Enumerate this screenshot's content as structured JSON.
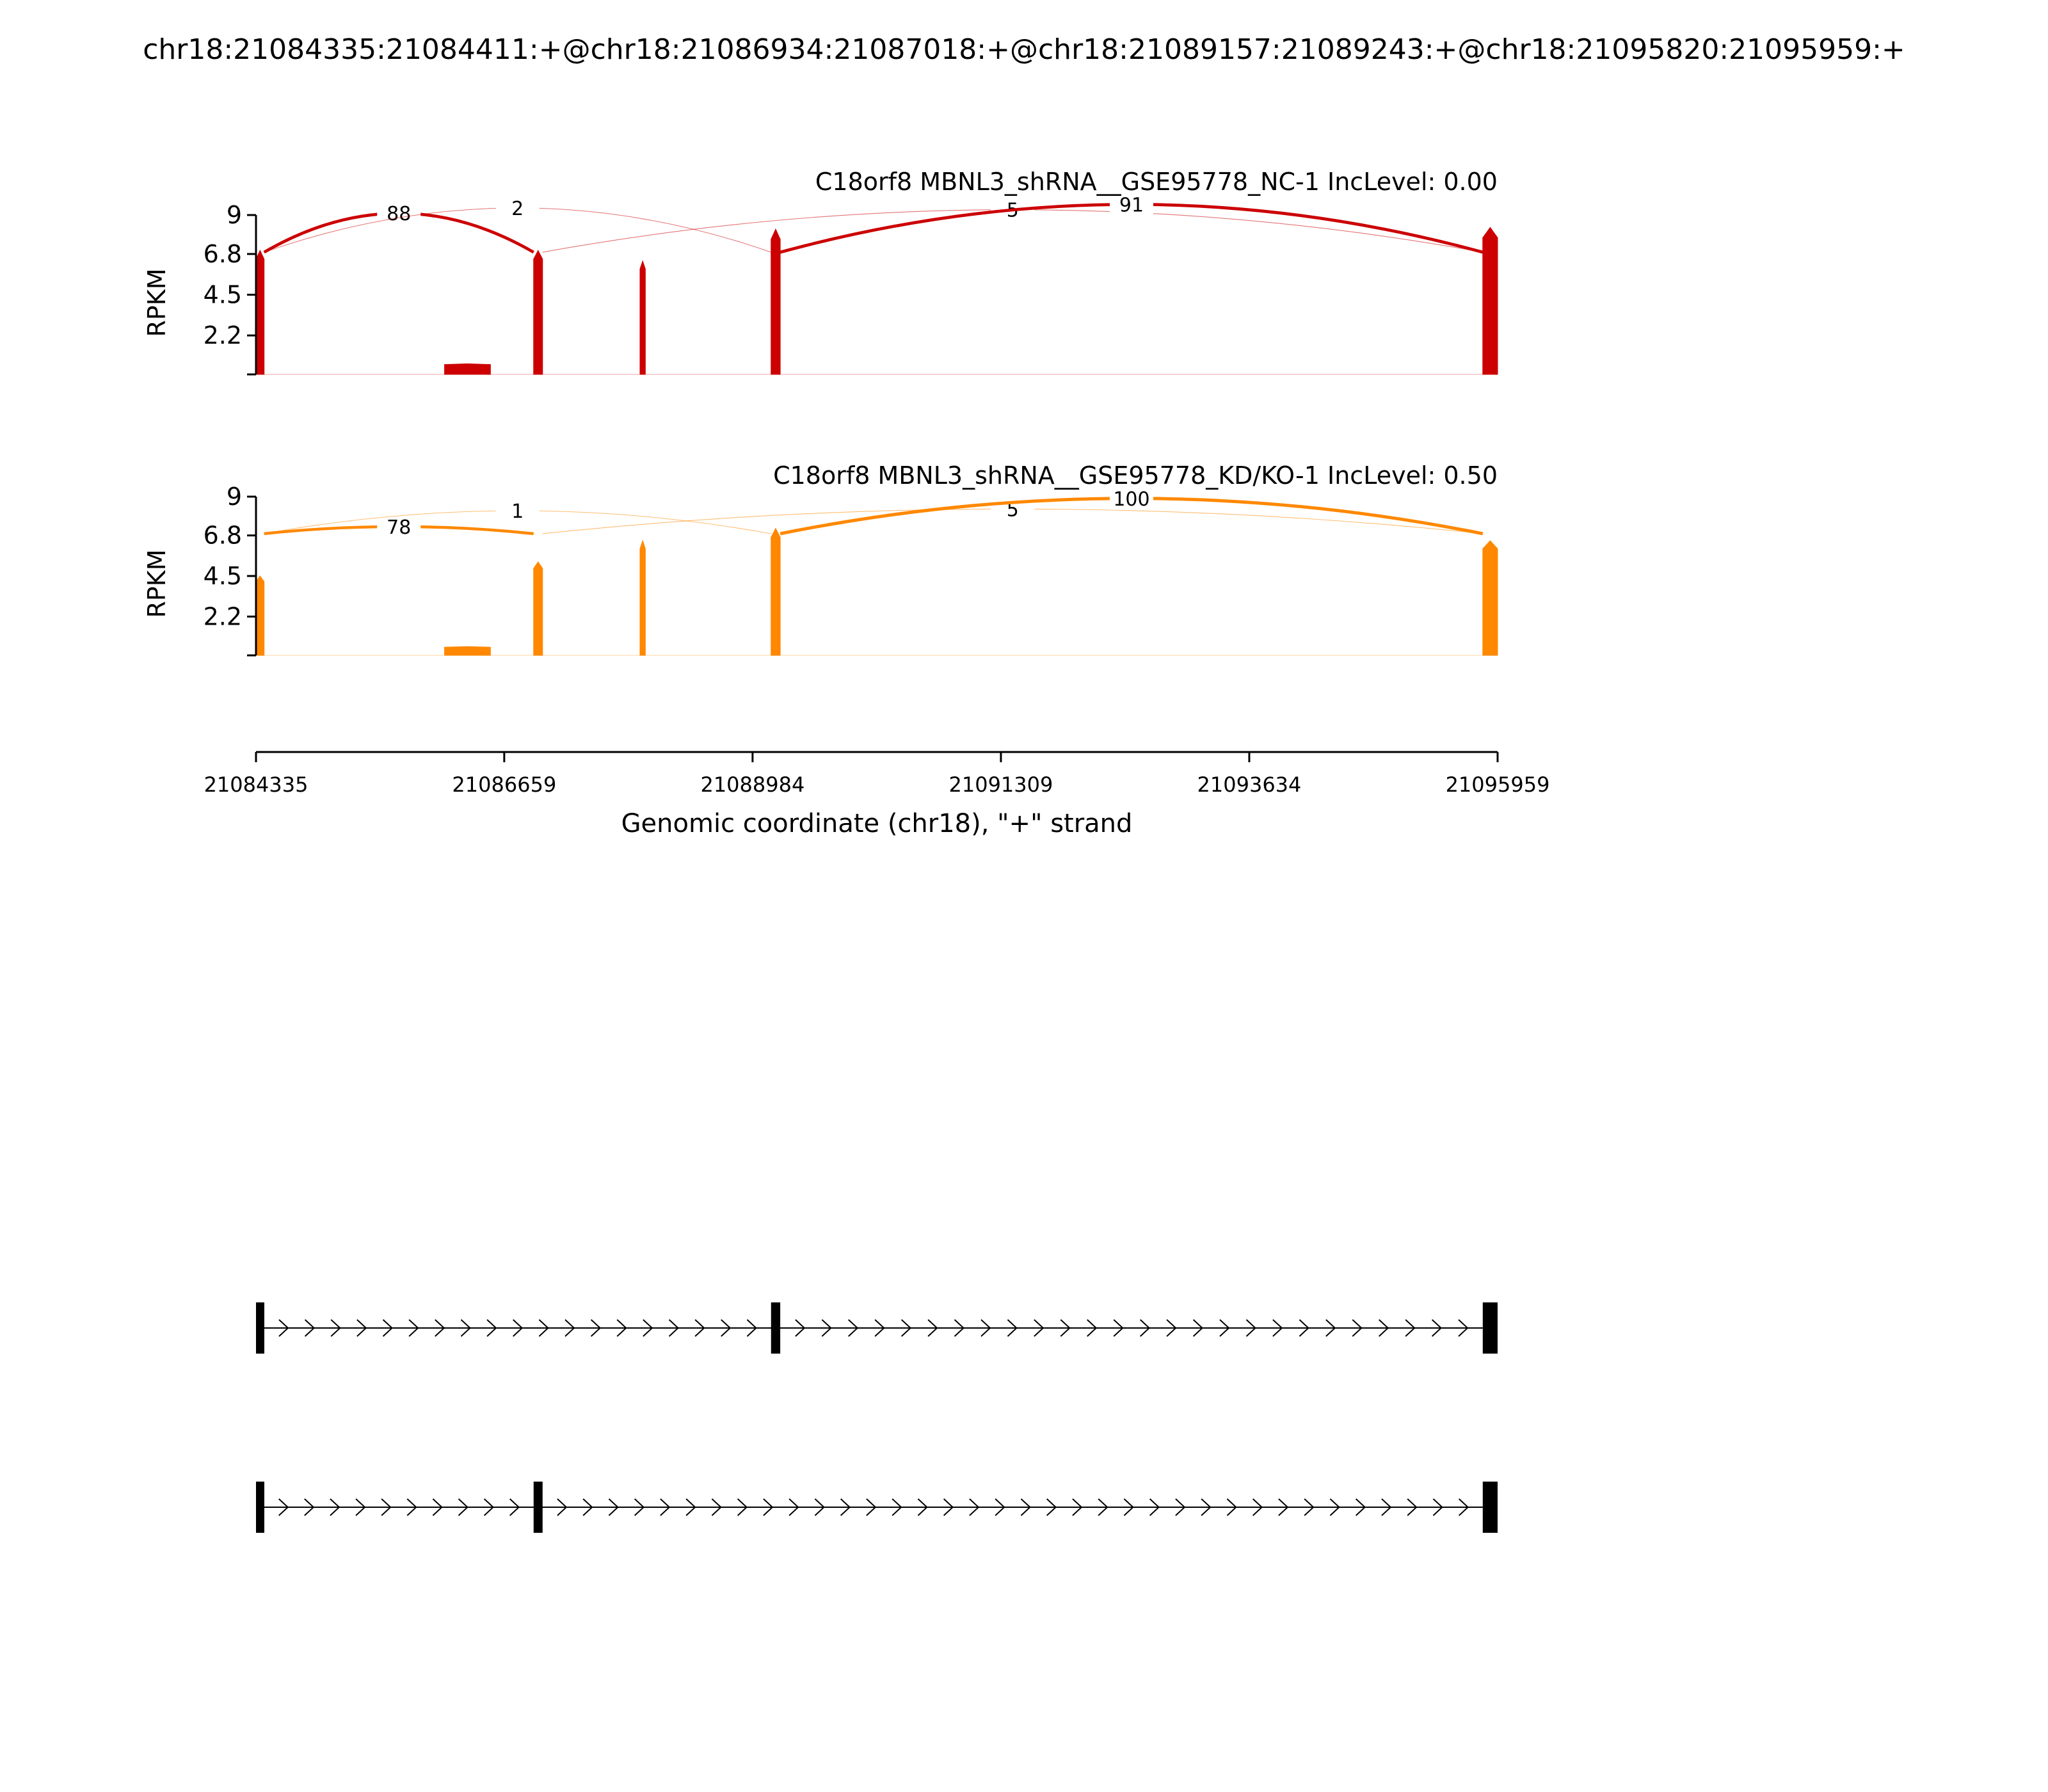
{
  "chart_data": {
    "type": "area",
    "title": "chr18:21084335:21084411:+@chr18:21086934:21087018:+@chr18:21089157:21089243:+@chr18:21095820:21095959:+",
    "xlabel": "Genomic coordinate (chr18), \"+\" strand",
    "xlim": [
      21084335,
      21095959
    ],
    "x_ticks": [
      21084335,
      21086659,
      21088984,
      21091309,
      21093634,
      21095959
    ],
    "grid": false,
    "tracks": [
      {
        "label": "C18orf8 MBNL3_shRNA__GSE95778_NC-1 IncLevel: 0.00",
        "color": "#cc0000",
        "ylabel": "RPKM",
        "ylim": [
          0,
          9
        ],
        "y_ticks": [
          "9",
          "6.8",
          "4.5",
          "2.2"
        ],
        "coverage": [
          {
            "start": 21084335,
            "end": 21084411,
            "peak": 7.0
          },
          {
            "start": 21086100,
            "end": 21086530,
            "peak": 0.6
          },
          {
            "start": 21086934,
            "end": 21087018,
            "peak": 7.0
          },
          {
            "start": 21087930,
            "end": 21087980,
            "peak": 6.4
          },
          {
            "start": 21089157,
            "end": 21089243,
            "peak": 8.2
          },
          {
            "start": 21095820,
            "end": 21095959,
            "peak": 8.3
          }
        ],
        "junctions": [
          {
            "from": 21084411,
            "to": 21086934,
            "count": "88",
            "height": 9.1
          },
          {
            "from": 21084411,
            "to": 21089157,
            "count": "2",
            "height": 9.4
          },
          {
            "from": 21087018,
            "to": 21095820,
            "count": "5",
            "height": 9.3
          },
          {
            "from": 21089243,
            "to": 21095820,
            "count": "91",
            "height": 9.6
          }
        ]
      },
      {
        "label": "C18orf8 MBNL3_shRNA__GSE95778_KD/KO-1 IncLevel: 0.50",
        "color": "#ff8800",
        "ylabel": "RPKM",
        "ylim": [
          0,
          9
        ],
        "y_ticks": [
          "9",
          "6.8",
          "4.5",
          "2.2"
        ],
        "coverage": [
          {
            "start": 21084335,
            "end": 21084411,
            "peak": 4.5
          },
          {
            "start": 21086100,
            "end": 21086530,
            "peak": 0.5
          },
          {
            "start": 21086934,
            "end": 21087018,
            "peak": 5.3
          },
          {
            "start": 21087930,
            "end": 21087980,
            "peak": 6.5
          },
          {
            "start": 21089157,
            "end": 21089243,
            "peak": 7.2
          },
          {
            "start": 21095820,
            "end": 21095959,
            "peak": 6.5
          }
        ],
        "junctions": [
          {
            "from": 21084411,
            "to": 21086934,
            "count": "78",
            "height": 7.3
          },
          {
            "from": 21084411,
            "to": 21089157,
            "count": "1",
            "height": 8.2
          },
          {
            "from": 21087018,
            "to": 21095820,
            "count": "5",
            "height": 8.3
          },
          {
            "from": 21089243,
            "to": 21095820,
            "count": "100",
            "height": 8.9
          }
        ]
      }
    ],
    "isoforms": [
      {
        "exons": [
          [
            21084335,
            21084411
          ],
          [
            21089157,
            21089243
          ],
          [
            21095820,
            21095959
          ]
        ]
      },
      {
        "exons": [
          [
            21084335,
            21084411
          ],
          [
            21086934,
            21087018
          ],
          [
            21095820,
            21095959
          ]
        ]
      }
    ]
  }
}
